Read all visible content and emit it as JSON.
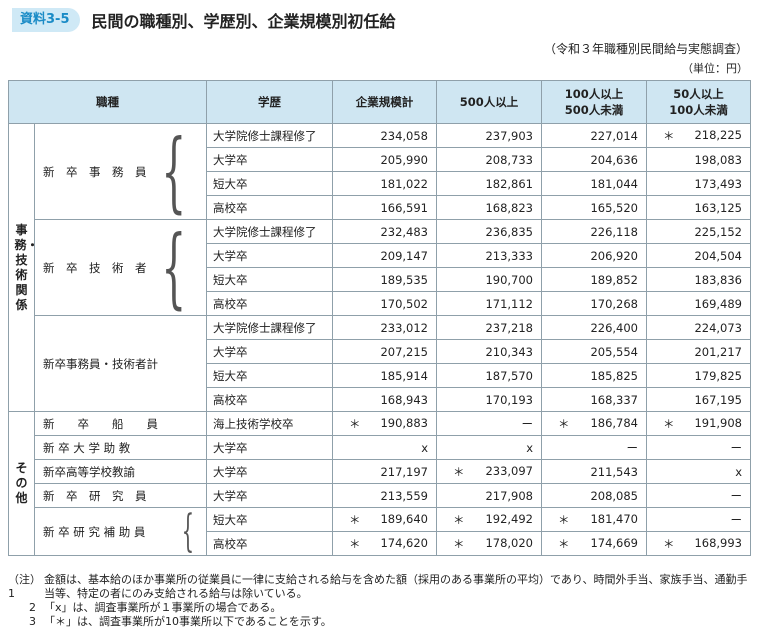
{
  "header": {
    "badge": "資料3-5",
    "title": "民間の職種別、学歴別、企業規模別初任給",
    "source": "（令和３年職種別民間給与実態調査）",
    "unit": "（単位：円）"
  },
  "columns": {
    "job": "職種",
    "edu": "学歴",
    "total": "企業規模計",
    "s500": "500人以上",
    "s100_a": "100人以上",
    "s100_b": "500人未満",
    "s50_a": "50人以上",
    "s50_b": "100人未満"
  },
  "groups": {
    "g1": "事務・技術関係",
    "g2": "その他"
  },
  "jobs": [
    "新　卒　事　務　員",
    "新　卒　技　術　者",
    "新卒事務員・技術者計",
    "新　　卒　　船　　員",
    "新 卒 大 学 助 教",
    "新卒高等学校教諭",
    "新　卒　研　究　員",
    "新 卒 研 究 補 助 員"
  ],
  "rows": [
    {
      "edu": "大学院修士課程修了",
      "total": "234,058",
      "s500": "237,903",
      "s100": "227,014",
      "s50": "218,225",
      "mark_s50": "＊"
    },
    {
      "edu": "大学卒",
      "total": "205,990",
      "s500": "208,733",
      "s100": "204,636",
      "s50": "198,083"
    },
    {
      "edu": "短大卒",
      "total": "181,022",
      "s500": "182,861",
      "s100": "181,044",
      "s50": "173,493"
    },
    {
      "edu": "高校卒",
      "total": "166,591",
      "s500": "168,823",
      "s100": "165,520",
      "s50": "163,125"
    },
    {
      "edu": "大学院修士課程修了",
      "total": "232,483",
      "s500": "236,835",
      "s100": "226,118",
      "s50": "225,152"
    },
    {
      "edu": "大学卒",
      "total": "209,147",
      "s500": "213,333",
      "s100": "206,920",
      "s50": "204,504"
    },
    {
      "edu": "短大卒",
      "total": "189,535",
      "s500": "190,700",
      "s100": "189,852",
      "s50": "183,836"
    },
    {
      "edu": "高校卒",
      "total": "170,502",
      "s500": "171,112",
      "s100": "170,268",
      "s50": "169,489"
    },
    {
      "edu": "大学院修士課程修了",
      "total": "233,012",
      "s500": "237,218",
      "s100": "226,400",
      "s50": "224,073"
    },
    {
      "edu": "大学卒",
      "total": "207,215",
      "s500": "210,343",
      "s100": "205,554",
      "s50": "201,217"
    },
    {
      "edu": "短大卒",
      "total": "185,914",
      "s500": "187,570",
      "s100": "185,825",
      "s50": "179,825"
    },
    {
      "edu": "高校卒",
      "total": "168,943",
      "s500": "170,193",
      "s100": "168,337",
      "s50": "167,195"
    },
    {
      "edu": "海上技術学校卒",
      "total": "190,883",
      "mark_total": "＊",
      "s500": "ー",
      "s100": "186,784",
      "mark_s100": "＊",
      "s50": "191,908",
      "mark_s50": "＊"
    },
    {
      "edu": "大学卒",
      "total": "x",
      "s500": "x",
      "s100": "ー",
      "s50": "ー"
    },
    {
      "edu": "大学卒",
      "total": "217,197",
      "s500": "233,097",
      "mark_s500": "＊",
      "s100": "211,543",
      "s50": "x"
    },
    {
      "edu": "大学卒",
      "total": "213,559",
      "s500": "217,908",
      "s100": "208,085",
      "s50": "ー"
    },
    {
      "edu": "短大卒",
      "total": "189,640",
      "mark_total": "＊",
      "s500": "192,492",
      "mark_s500": "＊",
      "s100": "181,470",
      "mark_s100": "＊",
      "s50": "ー"
    },
    {
      "edu": "高校卒",
      "total": "174,620",
      "mark_total": "＊",
      "s500": "178,020",
      "mark_s500": "＊",
      "s100": "174,669",
      "mark_s100": "＊",
      "s50": "168,993",
      "mark_s50": "＊"
    }
  ],
  "notes": [
    {
      "label": "（注）1",
      "text": "金額は、基本給のほか事業所の従業員に一律に支給される給与を含めた額（採用のある事業所の平均）であり、時間外手当、家族手当、通勤手当等、特定の者にのみ支給される給与は除いている。"
    },
    {
      "label": "2",
      "text": "「x」は、調査事業所が１事業所の場合である。"
    },
    {
      "label": "3",
      "text": "「＊」は、調査事業所が10事業所以下であることを示す。"
    }
  ]
}
